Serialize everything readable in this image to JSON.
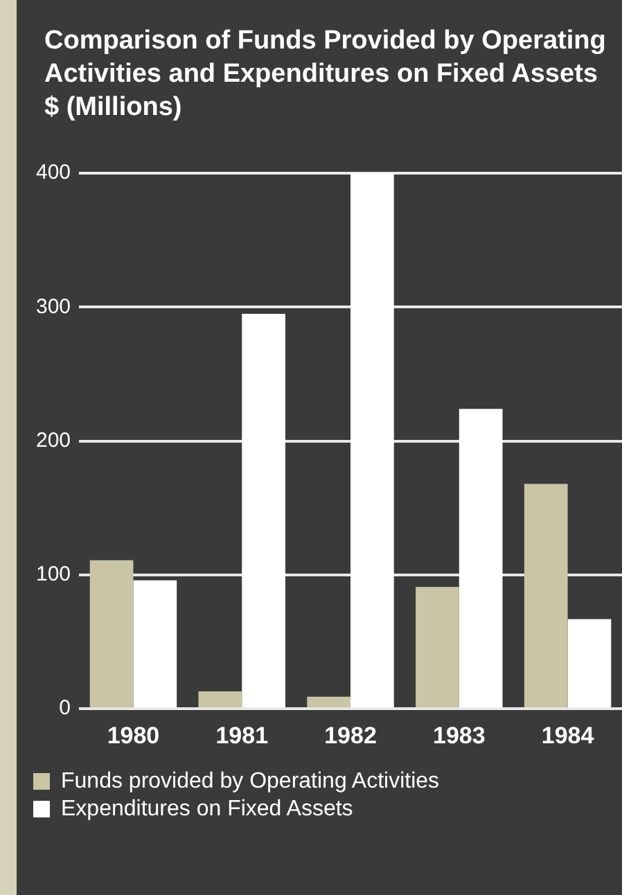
{
  "chart_data": {
    "type": "bar",
    "title": "Comparison of Funds Provided by Operating Activities and Expenditures on Fixed Assets $ (Millions)",
    "categories": [
      "1980",
      "1981",
      "1982",
      "1983",
      "1984"
    ],
    "series": [
      {
        "name": "Funds provided by Operating Activities",
        "color": "#c9c5a5",
        "values": [
          111,
          13,
          9,
          91,
          168
        ]
      },
      {
        "name": "Expenditures on Fixed Assets",
        "color": "#ffffff",
        "values": [
          96,
          295,
          400,
          224,
          67
        ]
      }
    ],
    "ylim": [
      0,
      400
    ],
    "yticks": [
      0,
      100,
      200,
      300,
      400
    ],
    "grid": "y",
    "legend": "bottom"
  }
}
